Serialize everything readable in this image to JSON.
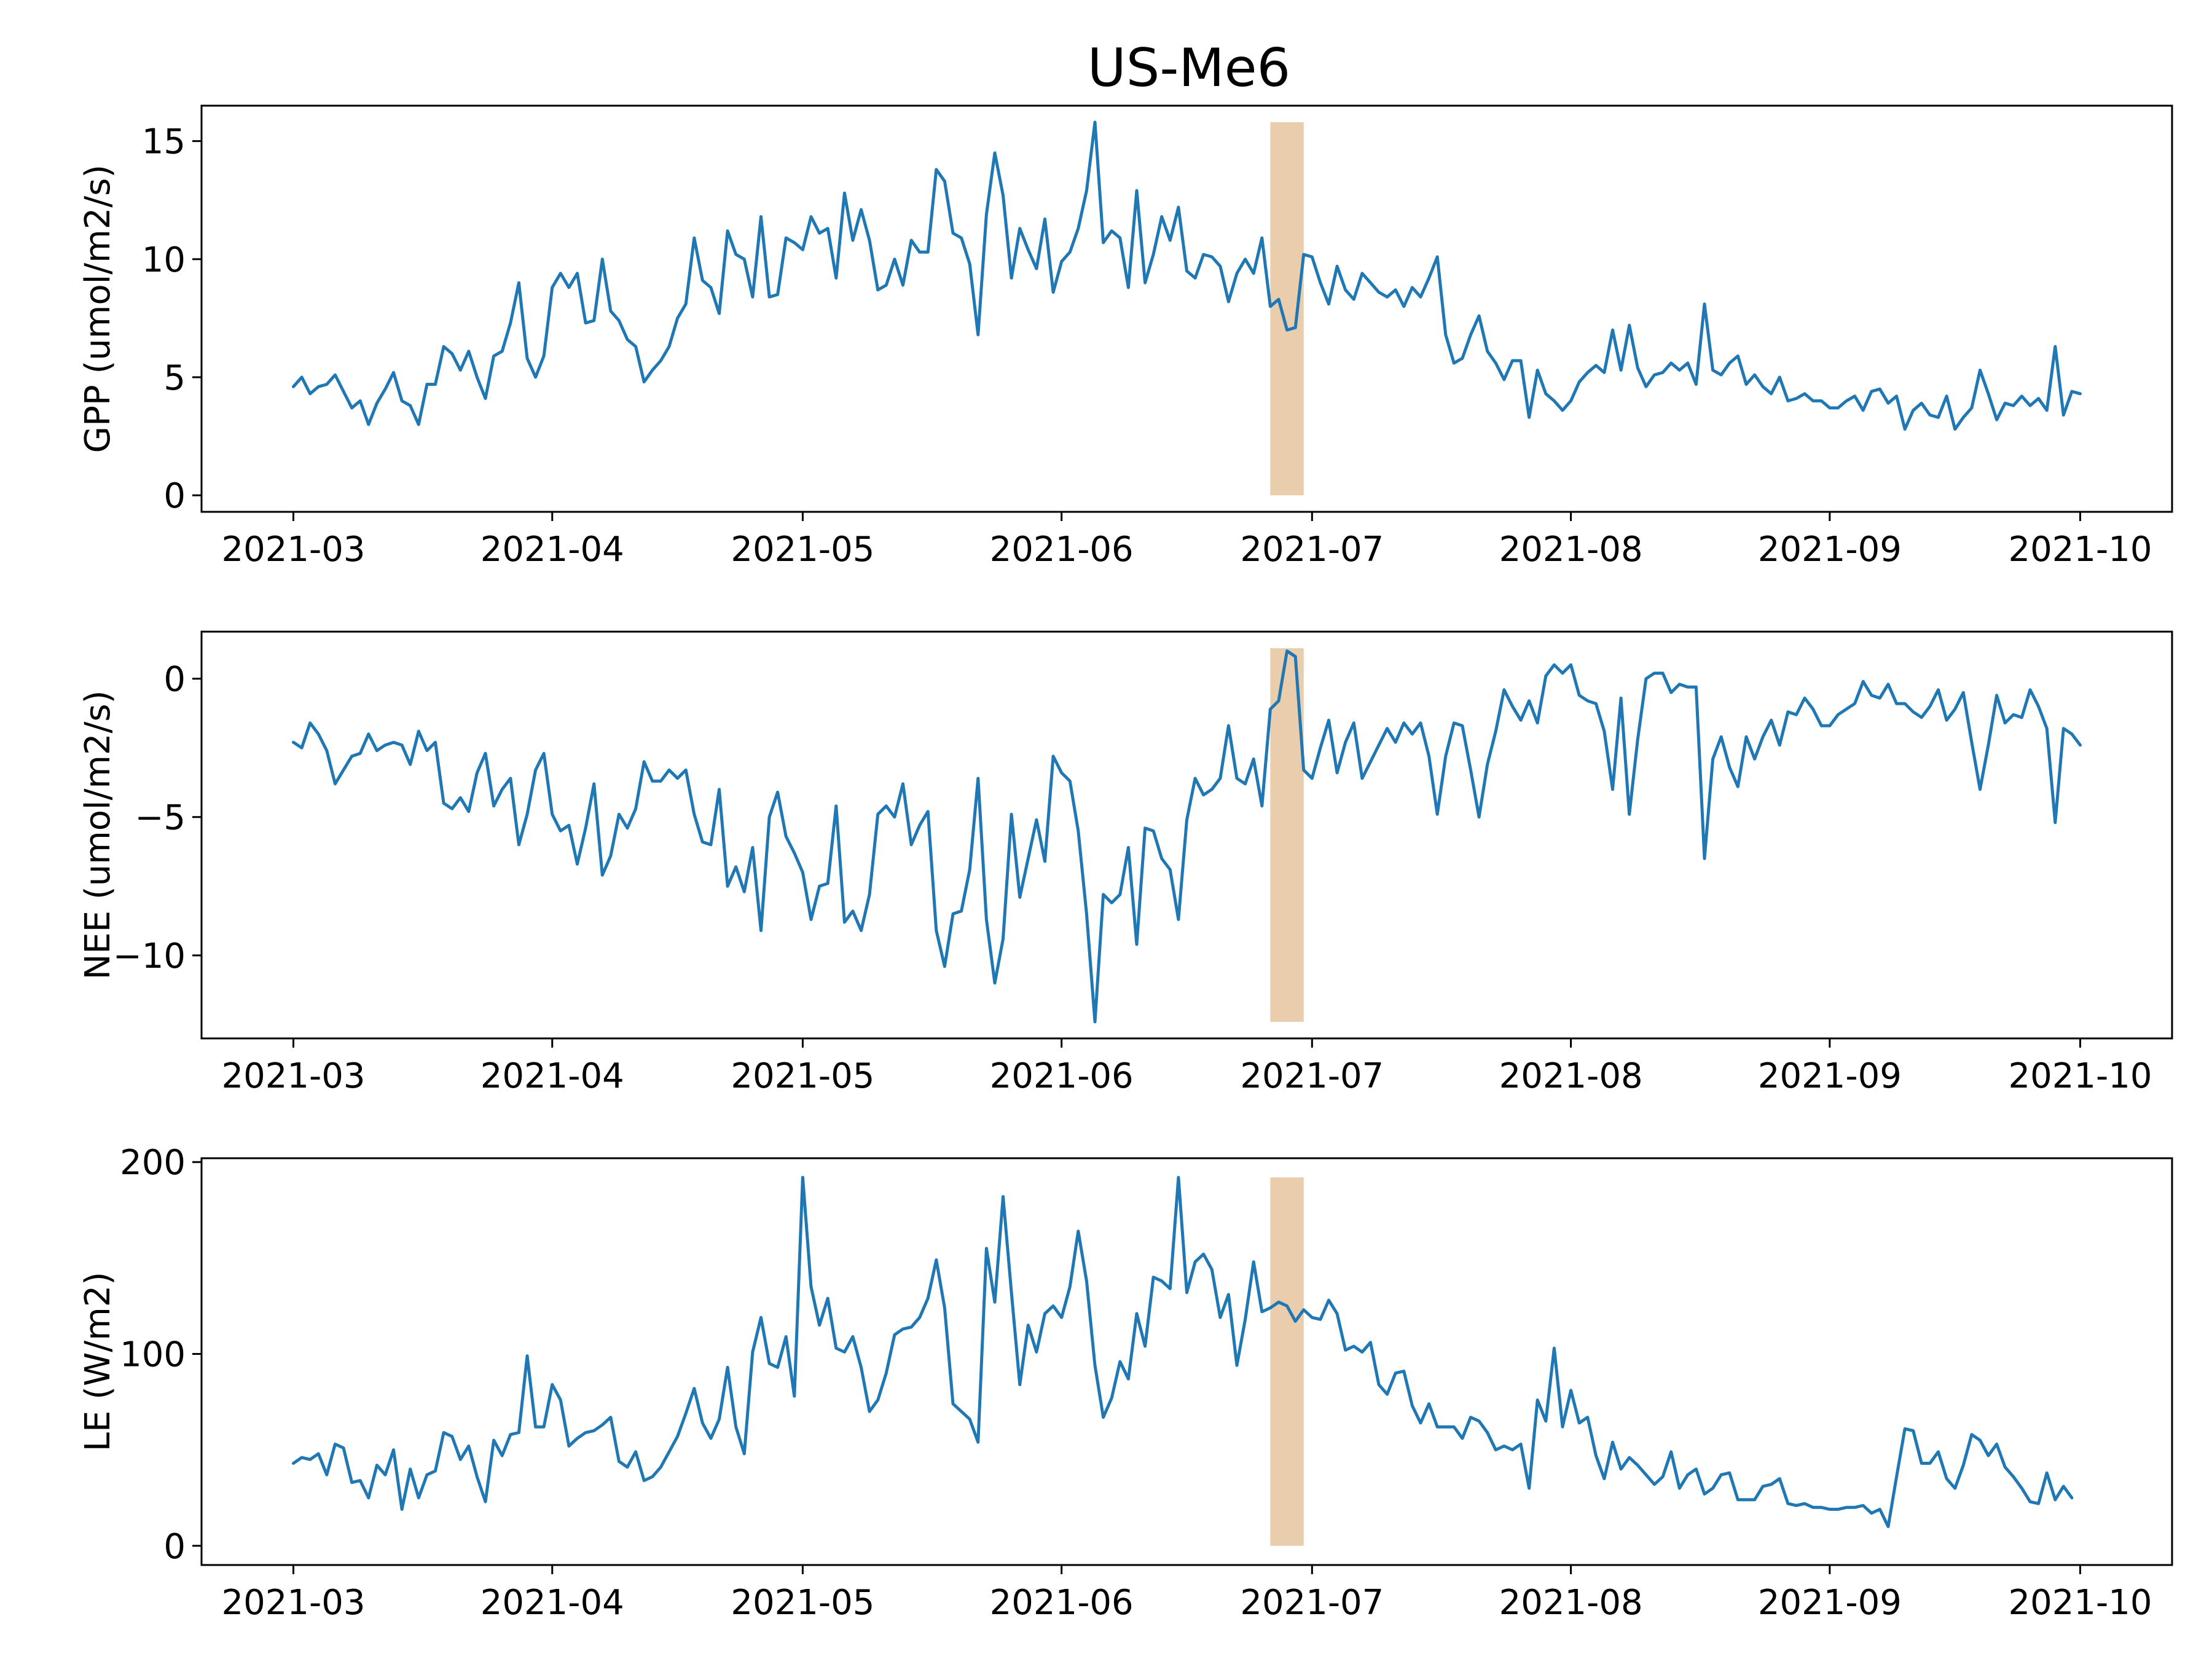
{
  "chart_data": {
    "type": "line",
    "title": "US-Me6",
    "colors": {
      "series": "#1f77b4",
      "highlight": "#e9cdad"
    },
    "x": {
      "start_date": "2021-03-01",
      "end_date": "2021-10-01",
      "tick_labels": [
        "2021-03",
        "2021-04",
        "2021-05",
        "2021-06",
        "2021-07",
        "2021-08",
        "2021-09",
        "2021-10"
      ],
      "tick_days": [
        0,
        31,
        61,
        92,
        122,
        153,
        184,
        214
      ],
      "xlim_days": [
        -11,
        225
      ]
    },
    "highlight": {
      "start_day": 117,
      "end_day": 121
    },
    "panels": [
      {
        "ylabel": "GPP (umol/m2/s)",
        "ylim": [
          -0.7,
          16.5
        ],
        "yticks": [
          0,
          5,
          10,
          15
        ],
        "ytick_labels": [
          "0",
          "5",
          "10",
          "15"
        ],
        "band": [
          0,
          15.8
        ],
        "values": [
          4.6,
          5.0,
          4.3,
          4.6,
          4.7,
          5.1,
          4.4,
          3.7,
          4.0,
          3.0,
          3.9,
          4.5,
          5.2,
          4.0,
          3.8,
          3.0,
          4.7,
          4.7,
          6.3,
          6.0,
          5.3,
          6.1,
          5.0,
          4.1,
          5.9,
          6.1,
          7.3,
          9.0,
          5.8,
          5.0,
          5.9,
          8.8,
          9.4,
          8.8,
          9.4,
          7.3,
          7.4,
          10.0,
          7.8,
          7.4,
          6.6,
          6.3,
          4.8,
          5.3,
          5.7,
          6.3,
          7.5,
          8.1,
          10.9,
          9.1,
          8.8,
          7.7,
          11.2,
          10.2,
          10.0,
          8.4,
          11.8,
          8.4,
          8.5,
          10.9,
          10.7,
          10.4,
          11.8,
          11.1,
          11.3,
          9.2,
          12.8,
          10.8,
          12.1,
          10.8,
          8.7,
          8.9,
          10.0,
          8.9,
          10.8,
          10.3,
          10.3,
          13.8,
          13.3,
          11.1,
          10.9,
          9.8,
          6.8,
          11.9,
          14.5,
          12.7,
          9.2,
          11.3,
          10.4,
          9.6,
          11.7,
          8.6,
          9.9,
          10.3,
          11.3,
          12.9,
          15.8,
          10.7,
          11.2,
          10.9,
          8.8,
          12.9,
          9.0,
          10.2,
          11.8,
          10.8,
          12.2,
          9.5,
          9.2,
          10.2,
          10.1,
          9.7,
          8.2,
          9.4,
          10.0,
          9.4,
          10.9,
          8.0,
          8.3,
          7.0,
          7.1,
          10.2,
          10.1,
          9.0,
          8.1,
          9.7,
          8.7,
          8.3,
          9.4,
          9.0,
          8.6,
          8.4,
          8.7,
          8.0,
          8.8,
          8.4,
          9.2,
          10.1,
          6.8,
          5.6,
          5.8,
          6.8,
          7.6,
          6.1,
          5.6,
          4.9,
          5.7,
          5.7,
          3.3,
          5.3,
          4.3,
          4.0,
          3.6,
          4.0,
          4.8,
          5.2,
          5.5,
          5.2,
          7.0,
          5.3,
          7.2,
          5.4,
          4.6,
          5.1,
          5.2,
          5.6,
          5.3,
          5.6,
          4.7,
          8.1,
          5.3,
          5.1,
          5.6,
          5.9,
          4.7,
          5.1,
          4.6,
          4.3,
          5.0,
          4.0,
          4.1,
          4.3,
          4.0,
          4.0,
          3.7,
          3.7,
          4.0,
          4.2,
          3.6,
          4.4,
          4.5,
          3.9,
          4.2,
          2.8,
          3.6,
          3.9,
          3.4,
          3.3,
          4.2,
          2.8,
          3.3,
          3.7,
          5.3,
          4.3,
          3.2,
          3.9,
          3.8,
          4.2,
          3.8,
          4.1,
          3.6,
          6.3,
          3.4,
          4.4,
          4.3
        ]
      },
      {
        "ylabel": "NEE (umol/m2/s)",
        "ylim": [
          -13.0,
          1.7
        ],
        "yticks": [
          -10,
          -5,
          0
        ],
        "ytick_labels": [
          "−10",
          "−5",
          "0"
        ],
        "band": [
          -12.4,
          1.1
        ],
        "values": [
          -2.3,
          -2.5,
          -1.6,
          -2.0,
          -2.6,
          -3.8,
          -3.3,
          -2.8,
          -2.7,
          -2.0,
          -2.6,
          -2.4,
          -2.3,
          -2.4,
          -3.1,
          -1.9,
          -2.6,
          -2.3,
          -4.5,
          -4.7,
          -4.3,
          -4.8,
          -3.4,
          -2.7,
          -4.6,
          -4.0,
          -3.6,
          -6.0,
          -4.9,
          -3.3,
          -2.7,
          -4.9,
          -5.5,
          -5.3,
          -6.7,
          -5.4,
          -3.8,
          -7.1,
          -6.4,
          -4.9,
          -5.4,
          -4.7,
          -3.0,
          -3.7,
          -3.7,
          -3.3,
          -3.6,
          -3.3,
          -4.9,
          -5.9,
          -6.0,
          -4.0,
          -7.5,
          -6.8,
          -7.7,
          -6.1,
          -9.1,
          -5.0,
          -4.1,
          -5.7,
          -6.3,
          -7.0,
          -8.7,
          -7.5,
          -7.4,
          -4.6,
          -8.8,
          -8.4,
          -9.1,
          -7.8,
          -4.9,
          -4.6,
          -5.0,
          -3.8,
          -6.0,
          -5.3,
          -4.8,
          -9.1,
          -10.4,
          -8.5,
          -8.4,
          -6.9,
          -3.6,
          -8.7,
          -11.0,
          -9.4,
          -4.9,
          -7.9,
          -6.5,
          -5.1,
          -6.6,
          -2.8,
          -3.4,
          -3.7,
          -5.5,
          -8.5,
          -12.4,
          -7.8,
          -8.1,
          -7.8,
          -6.1,
          -9.6,
          -5.4,
          -5.5,
          -6.5,
          -6.9,
          -8.7,
          -5.1,
          -3.6,
          -4.2,
          -4.0,
          -3.6,
          -1.7,
          -3.6,
          -3.8,
          -2.9,
          -4.6,
          -1.1,
          -0.8,
          1.0,
          0.8,
          -3.3,
          -3.6,
          -2.5,
          -1.5,
          -3.4,
          -2.3,
          -1.6,
          -3.6,
          -3.0,
          -2.4,
          -1.8,
          -2.3,
          -1.6,
          -2.0,
          -1.6,
          -2.8,
          -4.9,
          -2.8,
          -1.6,
          -1.7,
          -3.3,
          -5.0,
          -3.1,
          -1.9,
          -0.4,
          -1.0,
          -1.5,
          -0.8,
          -1.6,
          0.1,
          0.5,
          0.2,
          0.5,
          -0.6,
          -0.8,
          -0.9,
          -1.9,
          -4.0,
          -0.7,
          -4.9,
          -2.2,
          0.0,
          0.2,
          0.2,
          -0.5,
          -0.2,
          -0.3,
          -0.3,
          -6.5,
          -2.9,
          -2.1,
          -3.2,
          -3.9,
          -2.1,
          -2.9,
          -2.1,
          -1.5,
          -2.4,
          -1.2,
          -1.3,
          -0.7,
          -1.1,
          -1.7,
          -1.7,
          -1.3,
          -1.1,
          -0.9,
          -0.1,
          -0.6,
          -0.7,
          -0.2,
          -0.9,
          -0.9,
          -1.2,
          -1.4,
          -1.0,
          -0.4,
          -1.5,
          -1.1,
          -0.5,
          -2.3,
          -4.0,
          -2.4,
          -0.6,
          -1.6,
          -1.3,
          -1.4,
          -0.4,
          -1.0,
          -1.8,
          -5.2,
          -1.8,
          -2.0,
          -2.4
        ]
      },
      {
        "ylabel": "LE (W/m2)",
        "ylim": [
          -10,
          202
        ],
        "yticks": [
          0,
          100,
          200
        ],
        "ytick_labels": [
          "0",
          "100",
          "200"
        ],
        "band": [
          0,
          192
        ],
        "values": [
          43,
          46,
          45,
          48,
          37,
          53,
          51,
          33,
          34,
          25,
          42,
          37,
          50,
          19,
          40,
          25,
          37,
          39,
          59,
          57,
          45,
          52,
          36,
          23,
          55,
          47,
          58,
          59,
          99,
          62,
          62,
          84,
          76,
          52,
          56,
          59,
          60,
          63,
          67,
          44,
          41,
          49,
          34,
          36,
          41,
          49,
          57,
          69,
          82,
          64,
          56,
          66,
          93,
          62,
          48,
          101,
          119,
          95,
          93,
          109,
          78,
          192,
          135,
          115,
          129,
          103,
          101,
          109,
          93,
          70,
          76,
          90,
          110,
          113,
          114,
          119,
          129,
          149,
          124,
          74,
          70,
          66,
          54,
          155,
          127,
          182,
          132,
          84,
          115,
          101,
          121,
          125,
          119,
          135,
          164,
          138,
          94,
          67,
          77,
          96,
          87,
          121,
          104,
          140,
          138,
          134,
          192,
          132,
          148,
          152,
          144,
          119,
          131,
          94,
          118,
          148,
          122,
          124,
          127,
          125,
          117,
          123,
          119,
          118,
          128,
          121,
          102,
          104,
          101,
          106,
          84,
          79,
          90,
          91,
          73,
          64,
          74,
          62,
          62,
          62,
          56,
          67,
          65,
          59,
          50,
          52,
          50,
          53,
          30,
          76,
          65,
          103,
          62,
          81,
          64,
          67,
          47,
          35,
          54,
          40,
          46,
          42,
          37,
          32,
          36,
          49,
          30,
          37,
          40,
          27,
          30,
          37,
          38,
          24,
          24,
          24,
          31,
          32,
          35,
          22,
          21,
          22,
          20,
          20,
          19,
          19,
          20,
          20,
          21,
          17,
          19,
          10,
          36,
          61,
          60,
          43,
          43,
          49,
          35,
          30,
          42,
          58,
          55,
          47,
          53,
          41,
          36,
          30,
          23,
          22,
          38,
          24,
          31,
          25
        ]
      }
    ]
  }
}
